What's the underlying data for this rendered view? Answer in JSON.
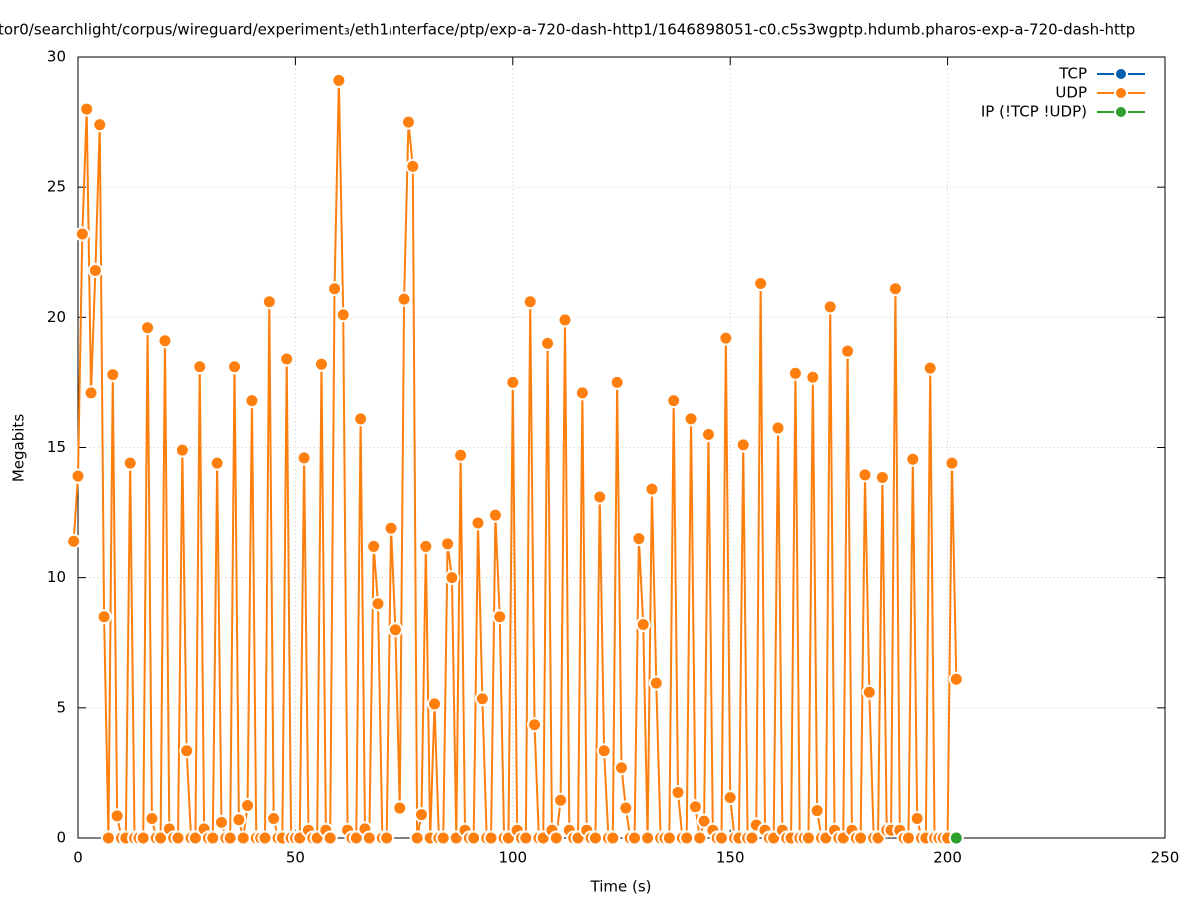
{
  "chart_data": {
    "type": "line",
    "title": "tor0/searchlight/corpus/wireguard/experiment₃/eth1ᵢnterface/ptp/exp-a-720-dash-http1/1646898051-c0.c5s3wgptp.hdumb.pharos-exp-a-720-dash-http",
    "x_label": "Time (s)",
    "y_label": "Megabits",
    "xlim": [
      0,
      250
    ],
    "xticks": [
      0,
      50,
      100,
      150,
      200,
      250
    ],
    "ylim": [
      0,
      30
    ],
    "yticks": [
      0,
      5,
      10,
      15,
      20,
      25,
      30
    ],
    "grid": true,
    "legend": "top-right",
    "series": [
      {
        "name": "TCP",
        "color": "#0060ad",
        "x": [],
        "values": []
      },
      {
        "name": "UDP",
        "color": "#ff7f0e",
        "x": [
          -1,
          0,
          1,
          2,
          3,
          4,
          5,
          6,
          7,
          8,
          9,
          10,
          11,
          12,
          13,
          14,
          15,
          16,
          17,
          18,
          19,
          20,
          21,
          22,
          23,
          24,
          25,
          26,
          27,
          28,
          29,
          30,
          31,
          32,
          33,
          34,
          35,
          36,
          37,
          38,
          39,
          40,
          41,
          42,
          43,
          44,
          45,
          46,
          47,
          48,
          49,
          50,
          51,
          52,
          53,
          54,
          55,
          56,
          57,
          58,
          59,
          60,
          61,
          62,
          63,
          64,
          65,
          66,
          67,
          68,
          69,
          70,
          71,
          72,
          73,
          74,
          75,
          76,
          77,
          78,
          79,
          80,
          81,
          82,
          83,
          84,
          85,
          86,
          87,
          88,
          89,
          90,
          91,
          92,
          93,
          94,
          95,
          96,
          97,
          98,
          99,
          100,
          101,
          102,
          103,
          104,
          105,
          106,
          107,
          108,
          109,
          110,
          111,
          112,
          113,
          114,
          115,
          116,
          117,
          118,
          119,
          120,
          121,
          122,
          123,
          124,
          125,
          126,
          127,
          128,
          129,
          130,
          131,
          132,
          133,
          134,
          135,
          136,
          137,
          138,
          139,
          140,
          141,
          142,
          143,
          144,
          145,
          146,
          147,
          148,
          149,
          150,
          151,
          152,
          153,
          154,
          155,
          156,
          157,
          158,
          159,
          160,
          161,
          162,
          163,
          164,
          165,
          166,
          167,
          168,
          169,
          170,
          171,
          172,
          173,
          174,
          175,
          176,
          177,
          178,
          179,
          180,
          181,
          182,
          183,
          184,
          185,
          186,
          187,
          188,
          189,
          190,
          191,
          192,
          193,
          194,
          195,
          196,
          197,
          198,
          199,
          200,
          201,
          202
        ],
        "values": [
          11.4,
          13.9,
          23.2,
          28.0,
          17.1,
          21.8,
          27.4,
          8.5,
          0,
          17.8,
          0.85,
          0,
          0,
          14.4,
          0,
          0,
          0,
          19.6,
          0.75,
          0,
          0,
          19.1,
          0.35,
          0,
          0,
          14.9,
          3.35,
          0,
          0,
          18.1,
          0.35,
          0,
          0,
          14.4,
          0.6,
          0,
          0,
          18.1,
          0.7,
          0,
          1.25,
          16.8,
          0,
          0,
          0,
          20.6,
          0.75,
          0,
          0,
          18.4,
          0,
          0,
          0,
          14.6,
          0.3,
          0,
          0,
          18.2,
          0.3,
          0,
          21.1,
          29.1,
          20.1,
          0.3,
          0,
          0,
          16.1,
          0.35,
          0,
          11.2,
          9.0,
          0,
          0,
          11.9,
          8.0,
          1.15,
          20.7,
          27.5,
          25.8,
          0,
          0.9,
          11.2,
          0,
          5.15,
          0,
          0,
          11.3,
          10.0,
          0,
          14.7,
          0.3,
          0,
          0,
          12.1,
          5.35,
          0,
          0,
          12.4,
          8.5,
          0,
          0,
          17.5,
          0.3,
          0,
          0,
          20.6,
          4.35,
          0,
          0,
          19.0,
          0.3,
          0,
          1.45,
          19.9,
          0.3,
          0,
          0,
          17.1,
          0.3,
          0,
          0,
          13.1,
          3.35,
          0,
          0,
          17.5,
          2.7,
          1.15,
          0,
          0,
          11.5,
          8.2,
          0,
          13.4,
          5.95,
          0,
          0,
          0,
          16.8,
          1.75,
          0,
          0,
          16.1,
          1.2,
          0,
          0.65,
          15.5,
          0.3,
          0,
          0,
          19.2,
          1.55,
          0,
          0,
          15.1,
          0,
          0,
          0.5,
          21.3,
          0.3,
          0,
          0,
          15.75,
          0.3,
          0,
          0,
          17.85,
          0,
          0,
          0,
          17.7,
          1.05,
          0,
          0,
          20.4,
          0.3,
          0,
          0,
          18.7,
          0.3,
          0,
          0,
          13.95,
          5.6,
          0,
          0,
          13.85,
          0.3,
          0.3,
          21.1,
          0.3,
          0,
          0,
          14.55,
          0.75,
          0,
          0,
          18.05,
          0,
          0,
          0,
          0,
          14.4,
          6.1
        ]
      },
      {
        "name": "IP (!TCP  !UDP)",
        "color": "#2ca02c",
        "x": [
          202
        ],
        "values": [
          0
        ]
      }
    ]
  }
}
